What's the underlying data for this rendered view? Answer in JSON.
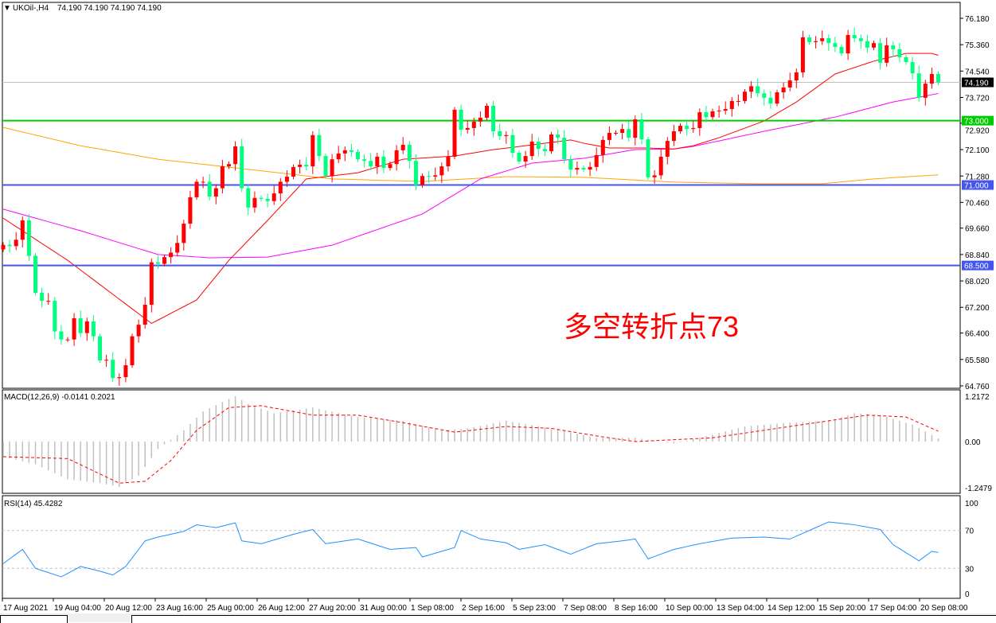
{
  "header": {
    "symbol_label": "UKOil-,H4",
    "ohlc": "74.190 74.190 74.190 74.190",
    "arrow_icon": "triangle-down-icon"
  },
  "annotation": {
    "text": "多空转折点73",
    "color": "#ff0000"
  },
  "colors": {
    "up": "#ff0000",
    "down": "#00ff7f",
    "ma_fast": "#ff0000",
    "ma_mid": "#ff00ff",
    "ma_slow": "#ffa500",
    "level_green": "#00cc00",
    "level_blue": "#4455ee",
    "macd_hist": "#c0c0c0",
    "macd_signal": "#ff0000",
    "rsi": "#1e90ff"
  },
  "chart_data": [
    {
      "type": "candlestick",
      "title": "UKOil-,H4",
      "ylim": [
        64.76,
        76.18
      ],
      "y_ticks": [
        "76.180",
        "75.360",
        "74.540",
        "73.720",
        "72.920",
        "72.100",
        "71.280",
        "70.460",
        "69.660",
        "68.840",
        "68.020",
        "67.200",
        "66.400",
        "65.580",
        "64.760"
      ],
      "closes": [
        69.14,
        69.1,
        69.3,
        69.9,
        68.8,
        67.65,
        67.4,
        67.4,
        66.45,
        66.2,
        66.2,
        66.86,
        66.4,
        66.76,
        66.3,
        65.55,
        65.57,
        65.0,
        65.03,
        65.4,
        66.3,
        66.66,
        67.28,
        68.6,
        68.55,
        68.76,
        68.9,
        69.2,
        69.8,
        70.62,
        71.1,
        71.1,
        70.64,
        70.9,
        71.58,
        71.65,
        72.2,
        70.9,
        70.3,
        70.6,
        70.57,
        70.5,
        70.74,
        71.1,
        71.26,
        71.56,
        71.63,
        71.58,
        72.55,
        71.9,
        71.28,
        71.8,
        71.98,
        72.08,
        72.03,
        71.8,
        71.75,
        71.58,
        71.88,
        71.53,
        71.65,
        72.08,
        72.25,
        71.75,
        71.0,
        71.28,
        71.26,
        71.3,
        71.58,
        71.88,
        73.34,
        72.72,
        72.77,
        72.97,
        73.09,
        73.46,
        72.67,
        72.52,
        72.55,
        72.0,
        71.73,
        71.9,
        72.35,
        72.12,
        72.05,
        72.57,
        72.47,
        71.8,
        71.48,
        71.53,
        71.48,
        71.56,
        71.93,
        72.4,
        72.62,
        72.62,
        72.74,
        72.47,
        73.04,
        72.42,
        71.24,
        71.3,
        71.88,
        72.37,
        72.67,
        72.84,
        72.74,
        72.77,
        73.26,
        73.11,
        73.29,
        73.31,
        73.36,
        73.61,
        73.61,
        73.9,
        74.07,
        73.85,
        73.71,
        73.53,
        73.88,
        74.03,
        74.25,
        74.5,
        75.59,
        75.44,
        75.47,
        75.56,
        75.41,
        75.29,
        75.09,
        75.66,
        75.56,
        75.47,
        75.27,
        75.41,
        74.8,
        75.34,
        75.22,
        74.97,
        74.82,
        74.47,
        73.71,
        74.15,
        74.45,
        74.19
      ],
      "first_open": 69.0,
      "ma_fast": [
        [
          0,
          69.97
        ],
        [
          10,
          68.66
        ],
        [
          23,
          66.7
        ],
        [
          30,
          67.43
        ],
        [
          35,
          68.66
        ],
        [
          41,
          69.9
        ],
        [
          47,
          71.19
        ],
        [
          55,
          71.38
        ],
        [
          62,
          71.8
        ],
        [
          70,
          71.9
        ],
        [
          76,
          72.1
        ],
        [
          79,
          72.17
        ],
        [
          88,
          72.4
        ],
        [
          90,
          72.3
        ],
        [
          94,
          72.15
        ],
        [
          100,
          72.15
        ],
        [
          104,
          72.12
        ],
        [
          107,
          72.22
        ],
        [
          111,
          72.47
        ],
        [
          118,
          72.99
        ],
        [
          123,
          73.58
        ],
        [
          129,
          74.45
        ],
        [
          135,
          74.85
        ],
        [
          140,
          75.09
        ],
        [
          144,
          75.09
        ],
        [
          146,
          74.97
        ]
      ],
      "ma_mid": [
        [
          0,
          70.25
        ],
        [
          12,
          69.58
        ],
        [
          24,
          68.84
        ],
        [
          32,
          68.74
        ],
        [
          41,
          68.76
        ],
        [
          51,
          69.13
        ],
        [
          65,
          70.1
        ],
        [
          74,
          71.19
        ],
        [
          82,
          71.68
        ],
        [
          90,
          71.83
        ],
        [
          98,
          72.1
        ],
        [
          104,
          72.12
        ],
        [
          107,
          72.2
        ],
        [
          118,
          72.67
        ],
        [
          129,
          73.11
        ],
        [
          138,
          73.58
        ],
        [
          146,
          73.88
        ]
      ],
      "ma_slow": [
        [
          0,
          72.79
        ],
        [
          12,
          72.22
        ],
        [
          24,
          71.8
        ],
        [
          37,
          71.51
        ],
        [
          51,
          71.19
        ],
        [
          65,
          71.11
        ],
        [
          78,
          71.26
        ],
        [
          90,
          71.24
        ],
        [
          104,
          71.09
        ],
        [
          117,
          71.04
        ],
        [
          127,
          71.04
        ],
        [
          135,
          71.19
        ],
        [
          146,
          71.33
        ]
      ],
      "levels": [
        {
          "value": 73.0,
          "label": "73.000",
          "color": "#00cc00"
        },
        {
          "value": 71.0,
          "label": "71.000",
          "color": "#4455ee"
        },
        {
          "value": 68.5,
          "label": "68.500",
          "color": "#4455ee"
        }
      ],
      "current_price": {
        "value": 74.19,
        "label": "74.190"
      }
    },
    {
      "type": "bar",
      "title": "MACD(12,26,9) -0.0141 0.2021",
      "ylim": [
        -1.2479,
        1.2172
      ],
      "y_ticks": [
        "1.2172",
        "0.00",
        "-1.2479"
      ],
      "histogram": [
        [
          0,
          -0.4
        ],
        [
          5,
          -0.6
        ],
        [
          10,
          -1.0
        ],
        [
          15,
          -1.1
        ],
        [
          18,
          -1.2
        ],
        [
          21,
          -0.9
        ],
        [
          24,
          -0.2
        ],
        [
          26,
          0.05
        ],
        [
          28,
          0.3
        ],
        [
          31,
          0.8
        ],
        [
          34,
          1.05
        ],
        [
          36,
          1.2
        ],
        [
          38,
          1.0
        ],
        [
          42,
          0.75
        ],
        [
          48,
          0.9
        ],
        [
          55,
          0.65
        ],
        [
          62,
          0.55
        ],
        [
          68,
          0.3
        ],
        [
          72,
          0.35
        ],
        [
          78,
          0.55
        ],
        [
          85,
          0.35
        ],
        [
          92,
          0.1
        ],
        [
          98,
          0.1
        ],
        [
          104,
          -0.05
        ],
        [
          108,
          0.1
        ],
        [
          115,
          0.4
        ],
        [
          122,
          0.5
        ],
        [
          128,
          0.55
        ],
        [
          132,
          0.75
        ],
        [
          136,
          0.7
        ],
        [
          141,
          0.45
        ],
        [
          146,
          -0.01
        ]
      ],
      "signal": [
        [
          0,
          -0.4
        ],
        [
          10,
          -0.45
        ],
        [
          18,
          -1.1
        ],
        [
          22,
          -1.05
        ],
        [
          26,
          -0.5
        ],
        [
          30,
          0.3
        ],
        [
          35,
          0.9
        ],
        [
          40,
          0.95
        ],
        [
          48,
          0.7
        ],
        [
          55,
          0.7
        ],
        [
          62,
          0.5
        ],
        [
          70,
          0.25
        ],
        [
          78,
          0.4
        ],
        [
          85,
          0.35
        ],
        [
          92,
          0.15
        ],
        [
          98,
          0.0
        ],
        [
          104,
          0.05
        ],
        [
          110,
          0.1
        ],
        [
          118,
          0.3
        ],
        [
          126,
          0.5
        ],
        [
          134,
          0.7
        ],
        [
          140,
          0.65
        ],
        [
          146,
          0.2
        ]
      ]
    },
    {
      "type": "line",
      "title": "RSI(14) 45.4282",
      "ylim": [
        0,
        100
      ],
      "y_ticks": [
        "100",
        "70",
        "30",
        "0"
      ],
      "reference_levels": [
        70,
        30
      ],
      "values": [
        [
          0,
          35
        ],
        [
          3,
          50
        ],
        [
          5,
          30
        ],
        [
          9,
          21
        ],
        [
          12,
          32
        ],
        [
          15,
          27
        ],
        [
          17,
          23
        ],
        [
          19,
          32
        ],
        [
          22,
          59
        ],
        [
          24,
          63
        ],
        [
          28,
          69
        ],
        [
          30,
          76
        ],
        [
          33,
          73
        ],
        [
          36,
          78
        ],
        [
          37,
          59
        ],
        [
          40,
          56
        ],
        [
          45,
          66
        ],
        [
          48,
          71
        ],
        [
          50,
          56
        ],
        [
          55,
          61
        ],
        [
          60,
          50
        ],
        [
          64,
          52
        ],
        [
          65,
          42
        ],
        [
          70,
          52
        ],
        [
          71,
          70
        ],
        [
          74,
          61
        ],
        [
          78,
          57
        ],
        [
          80,
          50
        ],
        [
          84,
          55
        ],
        [
          88,
          45
        ],
        [
          92,
          56
        ],
        [
          96,
          59
        ],
        [
          98,
          61
        ],
        [
          100,
          40
        ],
        [
          104,
          50
        ],
        [
          108,
          56
        ],
        [
          113,
          62
        ],
        [
          118,
          63
        ],
        [
          122,
          61
        ],
        [
          124,
          67
        ],
        [
          128,
          79
        ],
        [
          132,
          76
        ],
        [
          136,
          71
        ],
        [
          138,
          55
        ],
        [
          142,
          38
        ],
        [
          144,
          48
        ],
        [
          146,
          45.4
        ]
      ]
    }
  ],
  "time_axis": [
    "17 Aug 2021",
    "19 Aug 04:00",
    "20 Aug 12:00",
    "23 Aug 16:00",
    "25 Aug 00:00",
    "26 Aug 12:00",
    "27 Aug 20:00",
    "31 Aug 00:00",
    "1 Sep 08:00",
    "2 Sep 16:00",
    "5 Sep 23:00",
    "7 Sep 08:00",
    "8 Sep 16:00",
    "10 Sep 00:00",
    "13 Sep 04:00",
    "14 Sep 12:00",
    "15 Sep 20:00",
    "17 Sep 04:00",
    "20 Sep 08:00"
  ]
}
